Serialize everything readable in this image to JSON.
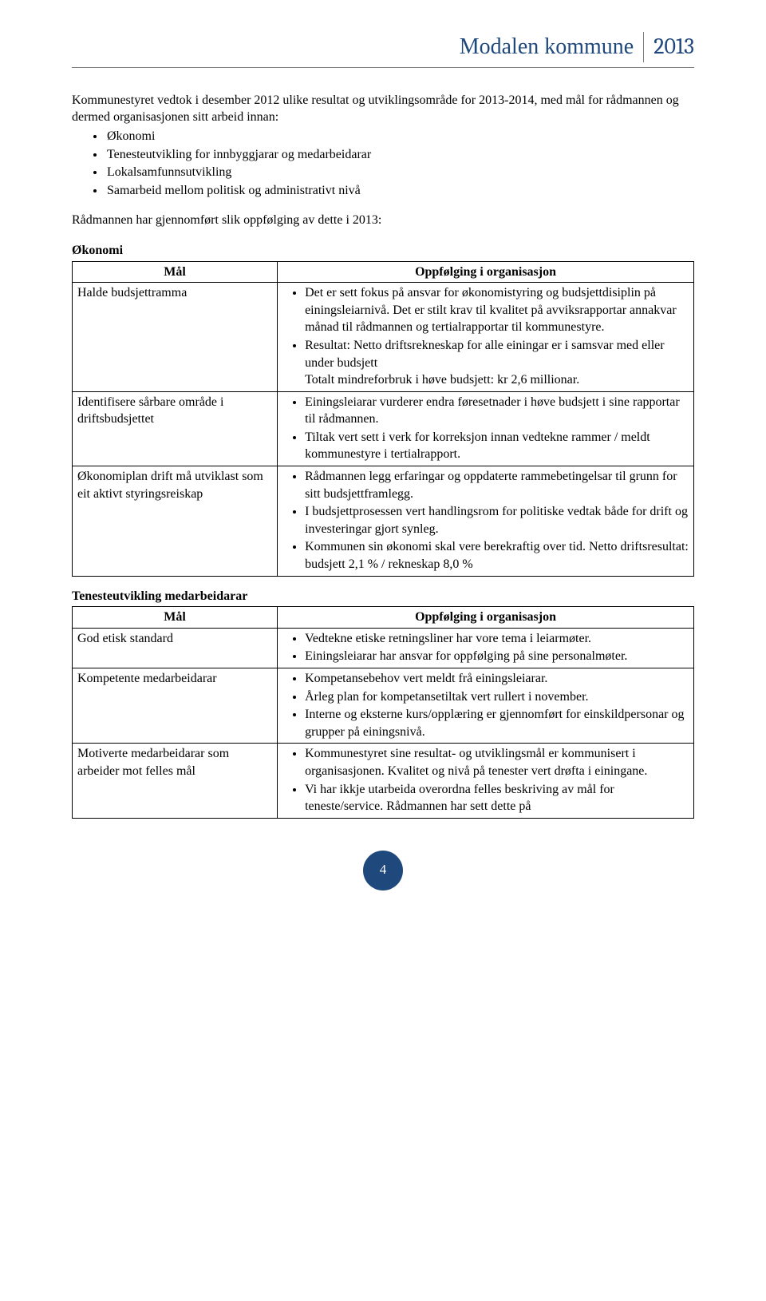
{
  "colors": {
    "accent": "#1f497d",
    "rule": "#7f7f7f",
    "text": "#000000",
    "background": "#ffffff",
    "table_border": "#000000"
  },
  "header": {
    "title": "Modalen kommune",
    "year": "2013"
  },
  "intro": {
    "paragraph": "Kommunestyret vedtok i desember 2012 ulike resultat og utviklingsområde for 2013-2014, med mål for rådmannen og dermed organisasjonen sitt arbeid innan:",
    "bullets": [
      "Økonomi",
      "Tenesteutvikling for innbyggjarar og medarbeidarar",
      "Lokalsamfunnsutvikling",
      "Samarbeid mellom politisk og administrativt nivå"
    ],
    "lead": "Rådmannen har gjennomført slik oppfølging av dette i 2013:"
  },
  "table1": {
    "section_title": "Økonomi",
    "header_left": "Mål",
    "header_right": "Oppfølging i organisasjon",
    "rows": [
      {
        "left": "Halde budsjettramma",
        "right": [
          "Det er sett fokus på ansvar for økonomistyring og budsjettdisiplin på einingsleiarnivå. Det er stilt krav til kvalitet på avviksrapportar annakvar månad til rådmannen og tertialrapportar til kommunestyre.",
          "Resultat: Netto driftsrekneskap for alle einingar er i samsvar med eller under budsjett\nTotalt mindreforbruk i høve budsjett:  kr 2,6 millionar."
        ]
      },
      {
        "left": "Identifisere sårbare område i driftsbudsjettet",
        "right": [
          "Einingsleiarar vurderer endra føresetnader i høve budsjett i sine rapportar til rådmannen.",
          "Tiltak vert sett i verk for korreksjon innan vedtekne rammer / meldt kommunestyre i tertialrapport."
        ]
      },
      {
        "left": "Økonomiplan drift må utviklast som eit aktivt styringsreiskap",
        "right": [
          "Rådmannen legg erfaringar og oppdaterte rammebetingelsar til grunn for sitt budsjettframlegg.",
          "I budsjettprosessen vert handlingsrom for politiske vedtak både for drift og investeringar gjort synleg.",
          "Kommunen sin økonomi skal vere berekraftig over tid. Netto driftsresultat: budsjett 2,1 % / rekneskap 8,0 %"
        ]
      }
    ]
  },
  "table2": {
    "section_title": "Tenesteutvikling medarbeidarar",
    "header_left": "Mål",
    "header_right": "Oppfølging i organisasjon",
    "rows": [
      {
        "left": "God etisk standard",
        "right": [
          "Vedtekne etiske retningsliner har vore tema i leiarmøter.",
          "Einingsleiarar har ansvar for oppfølging på sine personalmøter."
        ]
      },
      {
        "left": "Kompetente medarbeidarar",
        "right": [
          "Kompetansebehov vert meldt frå einingsleiarar.",
          "Årleg plan for kompetansetiltak vert rullert i november.",
          "Interne og eksterne kurs/opplæring er gjennomført for einskildpersonar og grupper på einingsnivå."
        ]
      },
      {
        "left": "Motiverte medarbeidarar som arbeider mot felles mål",
        "right": [
          "Kommunestyret sine resultat- og utviklingsmål er kommunisert i organisasjonen. Kvalitet og nivå på tenester vert drøfta i einingane.",
          "Vi har ikkje utarbeida overordna felles beskriving av mål for teneste/service. Rådmannen har sett dette på"
        ]
      }
    ]
  },
  "page_number": "4"
}
